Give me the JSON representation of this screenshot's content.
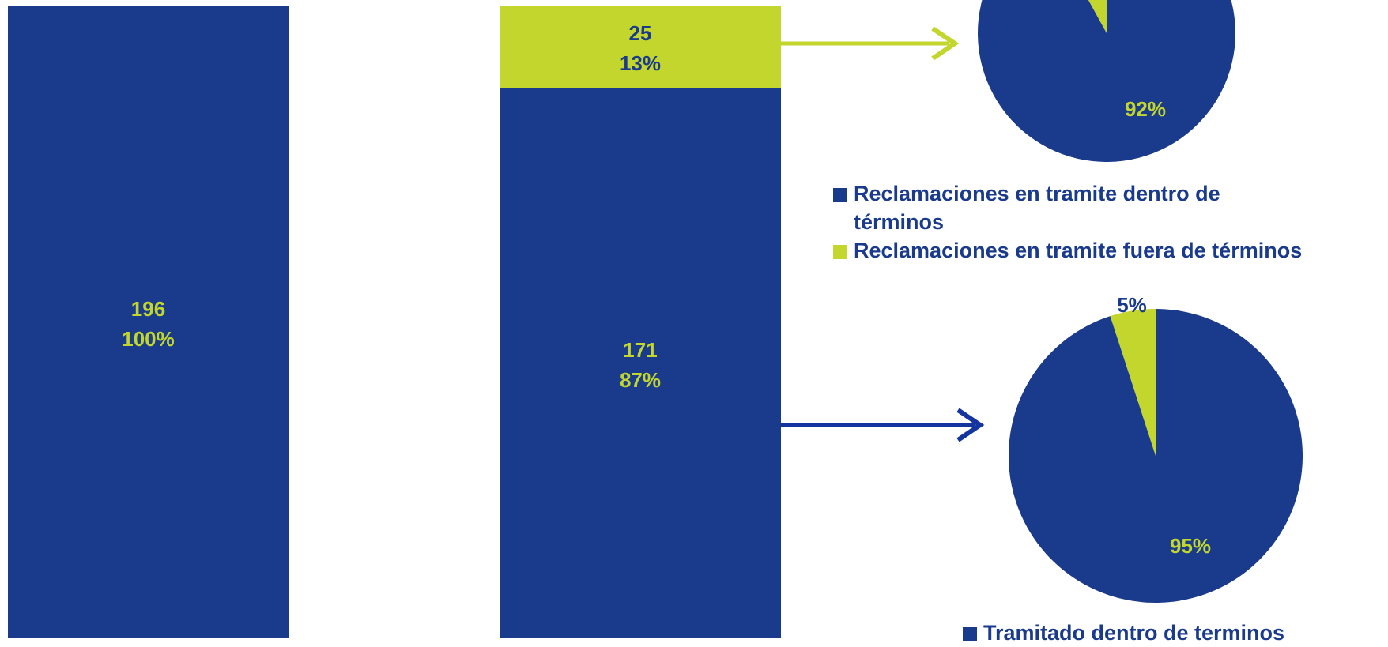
{
  "colors": {
    "navy": "#1a3a8c",
    "lime": "#c2d62e",
    "arrow_navy": "#1434a0"
  },
  "chart_data": [
    {
      "type": "bar",
      "categories": [
        ""
      ],
      "values": [
        196
      ],
      "labels": [
        {
          "value": "196",
          "percent": "100%"
        }
      ]
    },
    {
      "type": "bar",
      "stacked": true,
      "categories": [
        ""
      ],
      "series": [
        {
          "values": [
            171
          ],
          "label": {
            "value": "171",
            "percent": "87%"
          }
        },
        {
          "values": [
            25
          ],
          "label": {
            "value": "25",
            "percent": "13%"
          }
        }
      ]
    },
    {
      "type": "pie",
      "slices": [
        {
          "name": "Reclamaciones en tramite dentro de términos",
          "value": 92,
          "label": "92%"
        },
        {
          "name": "Reclamaciones en tramite fuera de términos",
          "value": 8,
          "label": ""
        }
      ],
      "legend": [
        "Reclamaciones en tramite dentro de términos",
        "Reclamaciones en tramite fuera de términos"
      ]
    },
    {
      "type": "pie",
      "slices": [
        {
          "name": "Tramitado dentro de terminos",
          "value": 95,
          "label": "95%"
        },
        {
          "name": "",
          "value": 5,
          "label": "5%"
        }
      ],
      "legend": [
        "Tramitado dentro de terminos"
      ]
    }
  ]
}
